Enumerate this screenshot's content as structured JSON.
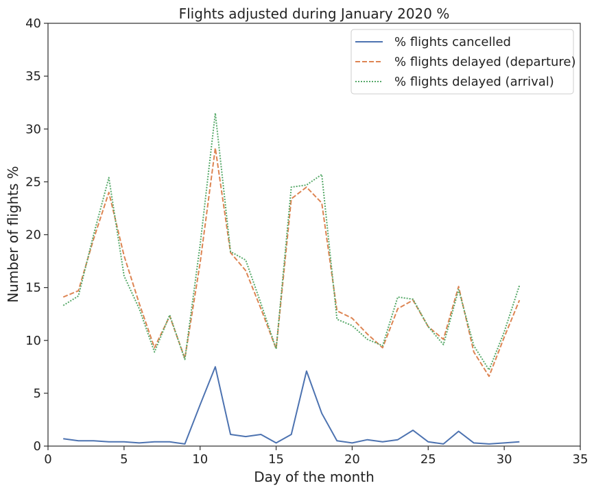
{
  "chart_data": {
    "type": "line",
    "title": "Flights adjusted during January 2020 %",
    "xlabel": "Day of the month",
    "ylabel": "Number of flights %",
    "xlim": [
      0,
      35
    ],
    "ylim": [
      0,
      40
    ],
    "xticks": [
      0,
      5,
      10,
      15,
      20,
      25,
      30,
      35
    ],
    "yticks": [
      0,
      5,
      10,
      15,
      20,
      25,
      30,
      35,
      40
    ],
    "grid": false,
    "legend_position": "top-right",
    "x": [
      1,
      2,
      3,
      4,
      5,
      6,
      7,
      8,
      9,
      10,
      11,
      12,
      13,
      14,
      15,
      16,
      17,
      18,
      19,
      20,
      21,
      22,
      23,
      24,
      25,
      26,
      27,
      28,
      29,
      30,
      31
    ],
    "series": [
      {
        "name": "% flights cancelled",
        "color": "#4c72b0",
        "style": "solid",
        "values": [
          0.7,
          0.5,
          0.5,
          0.4,
          0.4,
          0.3,
          0.4,
          0.4,
          0.2,
          3.9,
          7.5,
          1.1,
          0.9,
          1.1,
          0.3,
          1.1,
          7.1,
          3.1,
          0.5,
          0.3,
          0.6,
          0.4,
          0.6,
          1.5,
          0.4,
          0.2,
          1.4,
          0.3,
          0.2,
          0.3,
          0.4
        ]
      },
      {
        "name": "% flights delayed (departure)",
        "color": "#dd8452",
        "style": "dashed",
        "values": [
          14.1,
          14.7,
          19.6,
          24.0,
          18.0,
          13.5,
          9.3,
          12.3,
          8.3,
          17.3,
          28.2,
          18.3,
          16.6,
          13.0,
          9.2,
          23.4,
          24.5,
          23.0,
          12.8,
          12.1,
          10.6,
          9.3,
          13.0,
          13.8,
          11.3,
          10.1,
          15.1,
          8.9,
          6.6,
          10.3,
          13.8
        ]
      },
      {
        "name": "% flights delayed (arrival)",
        "color": "#55a868",
        "style": "dotted",
        "values": [
          13.3,
          14.2,
          20.0,
          25.4,
          16.1,
          13.0,
          8.9,
          12.4,
          8.2,
          19.0,
          31.5,
          18.4,
          17.6,
          13.5,
          9.2,
          24.5,
          24.7,
          25.7,
          12.0,
          11.4,
          10.1,
          9.5,
          14.1,
          13.9,
          11.3,
          9.6,
          14.8,
          9.5,
          7.2,
          10.8,
          15.2
        ]
      }
    ]
  }
}
